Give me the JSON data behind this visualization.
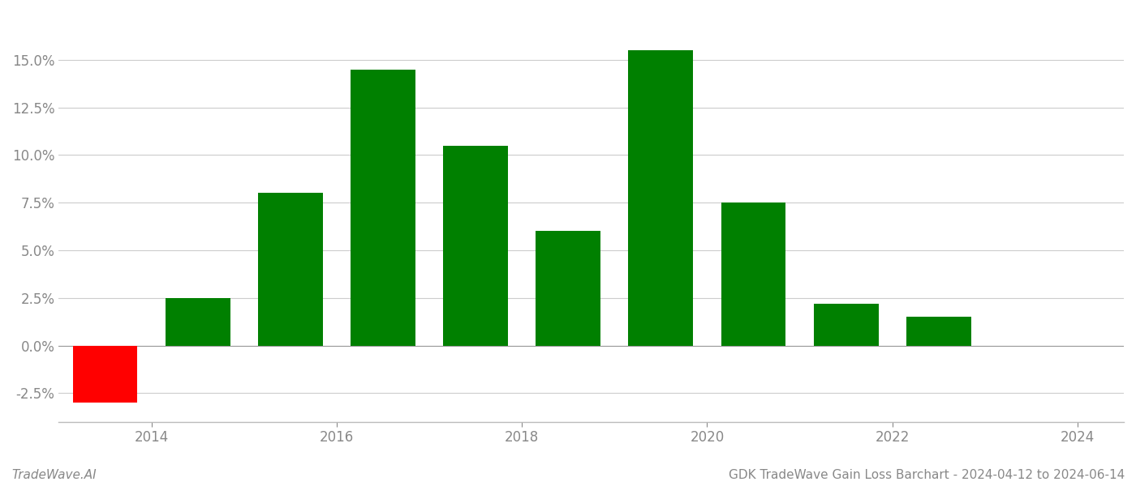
{
  "years": [
    2013.5,
    2014.5,
    2015.5,
    2016.5,
    2017.5,
    2018.5,
    2019.5,
    2020.5,
    2021.5,
    2022.5
  ],
  "values": [
    -0.03,
    0.025,
    0.08,
    0.145,
    0.105,
    0.06,
    0.155,
    0.075,
    0.022,
    0.015
  ],
  "bar_colors": [
    "#ff0000",
    "#008000",
    "#008000",
    "#008000",
    "#008000",
    "#008000",
    "#008000",
    "#008000",
    "#008000",
    "#008000"
  ],
  "bar_width": 0.7,
  "ylim": [
    -0.04,
    0.175
  ],
  "yticks": [
    -0.025,
    0.0,
    0.025,
    0.05,
    0.075,
    0.1,
    0.125,
    0.15
  ],
  "xticks": [
    2014,
    2016,
    2018,
    2020,
    2022,
    2024
  ],
  "xlim": [
    2013.0,
    2024.5
  ],
  "xlabel": "",
  "ylabel": "",
  "footer_left": "TradeWave.AI",
  "footer_right": "GDK TradeWave Gain Loss Barchart - 2024-04-12 to 2024-06-14",
  "background_color": "#ffffff",
  "grid_color": "#cccccc",
  "text_color": "#888888",
  "figsize": [
    14.0,
    6.0
  ],
  "dpi": 100
}
